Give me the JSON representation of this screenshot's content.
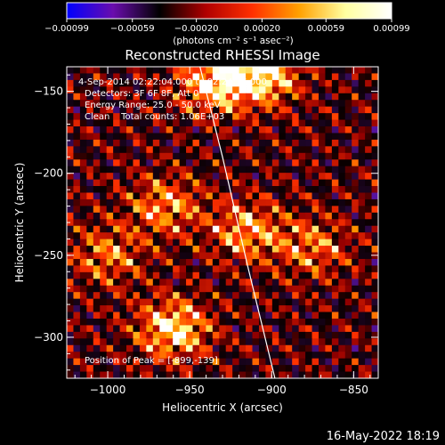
{
  "chart_data": {
    "type": "heatmap",
    "title": "Reconstructed RHESSI Image",
    "xlabel": "Heliocentric X (arcsec)",
    "ylabel": "Heliocentric Y (arcsec)",
    "xlim": [
      -1025,
      -835
    ],
    "ylim": [
      -325,
      -135
    ],
    "x_ticks": [
      {
        "value": -1000,
        "label": "−1000"
      },
      {
        "value": -950,
        "label": "−950"
      },
      {
        "value": -900,
        "label": "−900"
      },
      {
        "value": -850,
        "label": "−850"
      }
    ],
    "y_ticks": [
      {
        "value": -150,
        "label": "−150"
      },
      {
        "value": -200,
        "label": "−200"
      },
      {
        "value": -250,
        "label": "−250"
      },
      {
        "value": -300,
        "label": "−300"
      }
    ],
    "colorbar": {
      "range": [
        -0.00099,
        0.00099
      ],
      "ticks": [
        -0.00099,
        -0.00059,
        -0.0002,
        0.0002,
        0.00059,
        0.00099
      ],
      "tick_labels": [
        "−0.00099",
        "−0.00059",
        "−0.00020",
        "0.00020",
        "0.00059",
        "0.00099"
      ],
      "unit_label": "(photons cm⁻² s⁻¹ asec⁻²)",
      "colors": [
        "#0000ff",
        "#6a0dad",
        "#000000",
        "#b00000",
        "#ff3000",
        "#ffa000",
        "#ffffa0",
        "#ffffff"
      ]
    },
    "annotations": [
      "4-Sep-2014 02:22:04.000 to 02:24:16.000",
      "Detectors: 3F 6F 8F, Att 0",
      "Energy Range: 25.0 - 50.0 keV",
      "Clean    Total counts: 1.06E+03"
    ],
    "peak_label": "Position of Peak = [-899,-139]",
    "peak": {
      "x": -899,
      "y": -139
    },
    "limb_line": [
      {
        "x": -945,
        "y": -130
      },
      {
        "x": -930,
        "y": -190
      },
      {
        "x": -915,
        "y": -255
      },
      {
        "x": -898,
        "y": -325
      }
    ],
    "bright_regions": [
      {
        "x": -960,
        "y": -295,
        "intensity": 0.00099
      },
      {
        "x": -935,
        "y": -145,
        "intensity": 0.00095
      },
      {
        "x": -905,
        "y": -140,
        "intensity": 0.00099
      },
      {
        "x": -965,
        "y": -220,
        "intensity": 0.0007
      },
      {
        "x": -915,
        "y": -235,
        "intensity": 0.00075
      },
      {
        "x": -875,
        "y": -245,
        "intensity": 0.0006
      },
      {
        "x": -1000,
        "y": -250,
        "intensity": 0.0006
      }
    ]
  },
  "footer": {
    "timestamp": "16-May-2022 18:19"
  }
}
